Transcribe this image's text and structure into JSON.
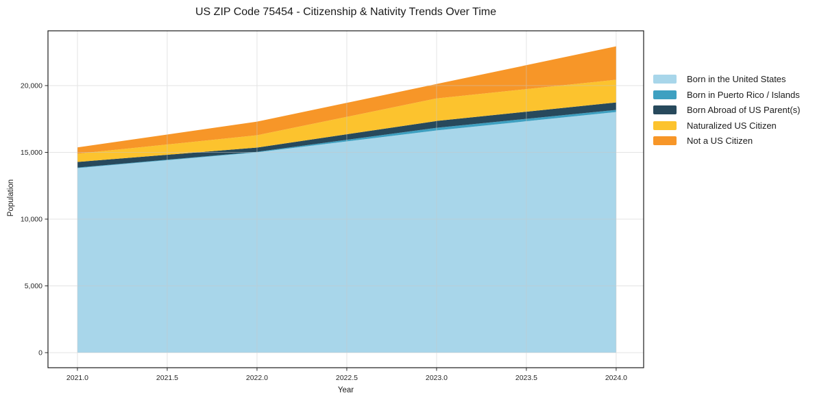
{
  "chart_data": {
    "type": "area",
    "stacked": true,
    "title": "US ZIP Code 75454 - Citizenship & Nativity Trends Over Time",
    "xlabel": "Year",
    "ylabel": "Population",
    "x": [
      2021,
      2022,
      2023,
      2024
    ],
    "series": [
      {
        "name": "Born in the United States",
        "color": "#A8D6EA",
        "values": [
          13820,
          15000,
          16640,
          18020
        ]
      },
      {
        "name": "Born in Puerto Rico / Islands",
        "color": "#3EA0C1",
        "values": [
          40,
          40,
          200,
          160
        ]
      },
      {
        "name": "Born Abroad of US Parent(s)",
        "color": "#27495C",
        "values": [
          420,
          320,
          510,
          560
        ]
      },
      {
        "name": "Naturalized US Citizen",
        "color": "#FCC32E",
        "values": [
          620,
          920,
          1690,
          1700
        ]
      },
      {
        "name": "Not a US Citizen",
        "color": "#F79628",
        "values": [
          470,
          1020,
          1080,
          2500
        ]
      }
    ],
    "totals": [
      15370,
      17300,
      20120,
      22940
    ],
    "x_ticks": [
      {
        "v": 2021.0,
        "label": "2021.0"
      },
      {
        "v": 2021.5,
        "label": "2021.5"
      },
      {
        "v": 2022.0,
        "label": "2022.0"
      },
      {
        "v": 2022.5,
        "label": "2022.5"
      },
      {
        "v": 2023.0,
        "label": "2023.0"
      },
      {
        "v": 2023.5,
        "label": "2023.5"
      },
      {
        "v": 2024.0,
        "label": "2024.0"
      }
    ],
    "y_ticks": [
      {
        "v": 0,
        "label": "0"
      },
      {
        "v": 5000,
        "label": "5,000"
      },
      {
        "v": 10000,
        "label": "10,000"
      },
      {
        "v": 15000,
        "label": "15,000"
      },
      {
        "v": 20000,
        "label": "20,000"
      }
    ],
    "xlim": [
      2020.836,
      2024.153
    ],
    "ylim": [
      -1128,
      24103
    ],
    "grid": true,
    "legend_position": "right-outside"
  },
  "colors": {
    "background": "#ffffff",
    "grid": "#c8c8c8",
    "spine": "#1a1a1a",
    "tick": "#262626",
    "text": "#1a1a1a"
  }
}
